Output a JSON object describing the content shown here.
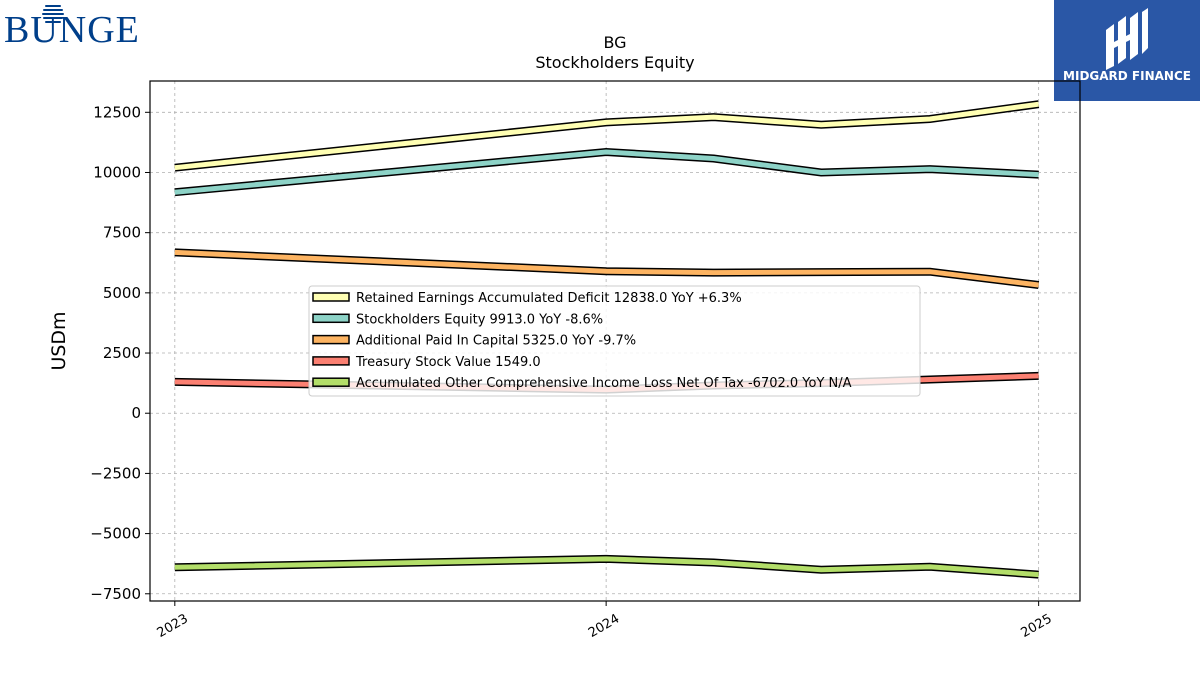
{
  "logos": {
    "bunge": {
      "text": "BUNGE",
      "color": "#003f8a"
    },
    "midgard": {
      "text": "MIDGARD FINANCE",
      "background": "#2a57a6"
    }
  },
  "chart_data": {
    "type": "line",
    "title": "BG",
    "subtitle": "Stockholders  Equity",
    "ylabel": "USDm",
    "ylim": [
      -7800,
      13800
    ],
    "yticks": [
      -7500,
      -5000,
      -2500,
      0,
      2500,
      5000,
      7500,
      10000,
      12500
    ],
    "ytick_labels": [
      "−7500",
      "−5000",
      "−2500",
      "0",
      "2500",
      "5000",
      "7500",
      "10000",
      "12500"
    ],
    "xlim": [
      "2022-12-11",
      "2025-02-05"
    ],
    "xticks": [
      "2023-01-01",
      "2024-01-01",
      "2025-01-01"
    ],
    "xtick_labels": [
      "2023",
      "2024",
      "2025"
    ],
    "grid": true,
    "legend_position": "center",
    "x": [
      "2023-01-01",
      "2024-01-01",
      "2024-04-01",
      "2024-07-01",
      "2024-10-01",
      "2025-01-01"
    ],
    "series": [
      {
        "name": "Retained Earnings Accumulated Deficit",
        "legend": "Retained Earnings Accumulated Deficit  12838.0 YoY +6.3%",
        "color": "#ffffb3",
        "values": [
          10200,
          12080,
          12300,
          11980,
          12220,
          12838
        ]
      },
      {
        "name": "Stockholders Equity",
        "legend": "Stockholders Equity  9913.0 YoY -8.6%",
        "color": "#8dd3c7",
        "values": [
          9180,
          10850,
          10580,
          10000,
          10140,
          9913
        ]
      },
      {
        "name": "Additional Paid In Capital",
        "legend": "Additional Paid In Capital  5325.0 YoY -9.7%",
        "color": "#fdb462",
        "values": [
          6680,
          5900,
          5840,
          5860,
          5880,
          5325
        ]
      },
      {
        "name": "Treasury Stock Value",
        "legend": "Treasury Stock Value  1549.0",
        "color": "#fb8072",
        "values": [
          1300,
          980,
          1150,
          1250,
          1400,
          1549
        ]
      },
      {
        "name": "Accumulated Other Comprehensive Income Loss Net Of Tax",
        "legend": "Accumulated Other Comprehensive Income Loss Net Of Tax  -6702.0 YoY N/A",
        "color": "#b3de69",
        "values": [
          -6400,
          -6050,
          -6200,
          -6500,
          -6380,
          -6702
        ]
      }
    ]
  }
}
